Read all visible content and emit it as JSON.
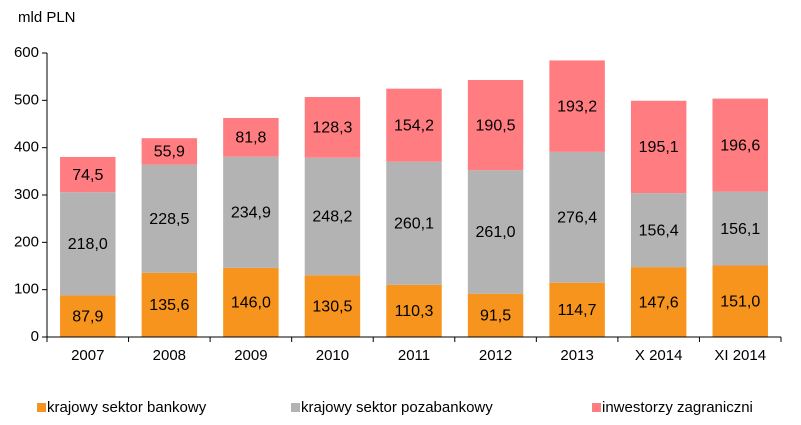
{
  "chart_data": {
    "type": "stacked_bar",
    "y_label": "mld PLN",
    "categories": [
      "2007",
      "2008",
      "2009",
      "2010",
      "2011",
      "2012",
      "2013",
      "X 2014",
      "XI 2014"
    ],
    "series": [
      {
        "name": "krajowy sektor bankowy",
        "color": "#f7941d",
        "values": [
          87.9,
          135.6,
          146.0,
          130.5,
          110.3,
          91.5,
          114.7,
          147.6,
          151.0
        ],
        "value_labels": [
          "87,9",
          "135,6",
          "146,0",
          "130,5",
          "110,3",
          "91,5",
          "114,7",
          "147,6",
          "151,0"
        ]
      },
      {
        "name": "krajowy sektor pozabankowy",
        "color": "#b3b3b3",
        "values": [
          218.0,
          228.5,
          234.9,
          248.2,
          260.1,
          261.0,
          276.4,
          156.4,
          156.1
        ],
        "value_labels": [
          "218,0",
          "228,5",
          "234,9",
          "248,2",
          "260,1",
          "261,0",
          "276,4",
          "156,4",
          "156,1"
        ]
      },
      {
        "name": "inwestorzy zagraniczni",
        "color": "#ff7c80",
        "values": [
          74.5,
          55.9,
          81.8,
          128.3,
          154.2,
          190.5,
          193.2,
          195.1,
          196.6
        ],
        "value_labels": [
          "74,5",
          "55,9",
          "81,8",
          "128,3",
          "154,2",
          "190,5",
          "193,2",
          "195,1",
          "196,6"
        ]
      }
    ],
    "ylim": [
      0,
      600
    ],
    "yticks": [
      0,
      100,
      200,
      300,
      400,
      500,
      600
    ],
    "grid": false,
    "legend": "bottom"
  }
}
